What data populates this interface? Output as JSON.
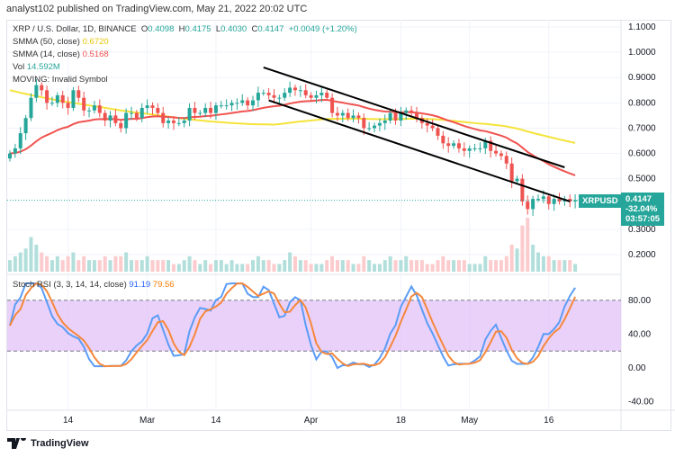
{
  "header": {
    "published": "analyst102 published on TradingView.com, May 21, 2022 20:02 UTC"
  },
  "legend": {
    "symbol": "XRP / U.S. Dollar, 1D, BINANCE",
    "o_label": "O",
    "o": "0.4098",
    "h_label": "H",
    "h": "0.4175",
    "l_label": "L",
    "l": "0.4030",
    "c_label": "C",
    "c": "0.4147",
    "change": "+0.0049 (+1.20%)",
    "smma50_label": "SMMA (50, close)",
    "smma50": "0.6720",
    "smma14_label": "SMMA (14, close)",
    "smma14": "0.5168",
    "vol_label": "Vol",
    "vol": "14.592M",
    "moving": "MOVING: Invalid Symbol",
    "stoch_label": "Stoch RSI (3, 3, 14, 14, close)",
    "stoch_k": "91.19",
    "stoch_d": "79.56"
  },
  "price_tag": {
    "symbol": "XRPUSD",
    "price": "0.4147",
    "change": "-32.04%",
    "countdown": "03:57:05"
  },
  "price_axis": [
    "1.1000",
    "1.0000",
    "0.9000",
    "0.8000",
    "0.7000",
    "0.6000",
    "0.5000",
    "0.3000",
    "0.2000"
  ],
  "stoch_axis": [
    "80.00",
    "40.00",
    "0.00",
    "-40.00"
  ],
  "time_axis": [
    "14",
    "Mar",
    "14",
    "Apr",
    "18",
    "May",
    "16"
  ],
  "colors": {
    "up": "#26a69a",
    "down": "#ef5350",
    "smma50": "#f5e33b",
    "smma14": "#f05350",
    "k": "#5b9cf6",
    "d": "#f5883c",
    "band": "#e1bdf7"
  },
  "footer": {
    "logo": "TradingView"
  },
  "chart_data": {
    "type": "candlestick",
    "start_date": "2022-02-03",
    "ylim": [
      0.15,
      1.12
    ],
    "stoch_ylim": [
      -55,
      110
    ],
    "closes": [
      0.6,
      0.62,
      0.68,
      0.74,
      0.82,
      0.87,
      0.85,
      0.8,
      0.8,
      0.83,
      0.8,
      0.78,
      0.85,
      0.82,
      0.77,
      0.77,
      0.79,
      0.76,
      0.73,
      0.75,
      0.72,
      0.7,
      0.76,
      0.76,
      0.74,
      0.78,
      0.79,
      0.78,
      0.76,
      0.72,
      0.73,
      0.72,
      0.72,
      0.73,
      0.78,
      0.76,
      0.76,
      0.78,
      0.76,
      0.79,
      0.79,
      0.79,
      0.8,
      0.8,
      0.81,
      0.79,
      0.81,
      0.84,
      0.84,
      0.83,
      0.82,
      0.82,
      0.84,
      0.86,
      0.85,
      0.85,
      0.83,
      0.82,
      0.83,
      0.84,
      0.82,
      0.76,
      0.75,
      0.76,
      0.74,
      0.75,
      0.74,
      0.7,
      0.7,
      0.71,
      0.72,
      0.73,
      0.76,
      0.73,
      0.76,
      0.77,
      0.76,
      0.74,
      0.72,
      0.71,
      0.7,
      0.67,
      0.64,
      0.63,
      0.64,
      0.62,
      0.61,
      0.62,
      0.62,
      0.62,
      0.65,
      0.61,
      0.6,
      0.59,
      0.56,
      0.49,
      0.5,
      0.41,
      0.38,
      0.42,
      0.42,
      0.43,
      0.4,
      0.42,
      0.41,
      0.42,
      0.4098,
      0.4147
    ],
    "volumes": [
      3,
      4,
      5,
      6,
      9,
      7,
      5,
      4,
      3,
      4,
      3,
      4,
      5,
      3,
      4,
      3,
      3,
      3,
      4,
      3,
      4,
      4,
      5,
      3,
      3,
      3,
      4,
      3,
      3,
      3,
      3,
      2,
      2,
      3,
      4,
      3,
      2,
      3,
      2,
      3,
      3,
      2,
      3,
      2,
      2,
      2,
      3,
      4,
      3,
      3,
      2,
      2,
      3,
      5,
      4,
      3,
      3,
      2,
      2,
      2,
      3,
      4,
      3,
      3,
      3,
      2,
      2,
      4,
      3,
      2,
      2,
      3,
      4,
      3,
      3,
      4,
      3,
      3,
      3,
      2,
      2,
      3,
      4,
      3,
      3,
      3,
      3,
      2,
      2,
      2,
      4,
      3,
      3,
      3,
      4,
      7,
      6,
      12,
      14,
      7,
      5,
      4,
      4,
      3,
      3,
      3,
      3,
      2
    ],
    "channel": {
      "upper": [
        [
          "2022-03-23",
          0.94
        ],
        [
          "2022-05-19",
          0.545
        ]
      ],
      "lower": [
        [
          "2022-03-24",
          0.81
        ],
        [
          "2022-05-20",
          0.41
        ]
      ]
    },
    "stoch_bands": [
      20,
      80
    ]
  }
}
